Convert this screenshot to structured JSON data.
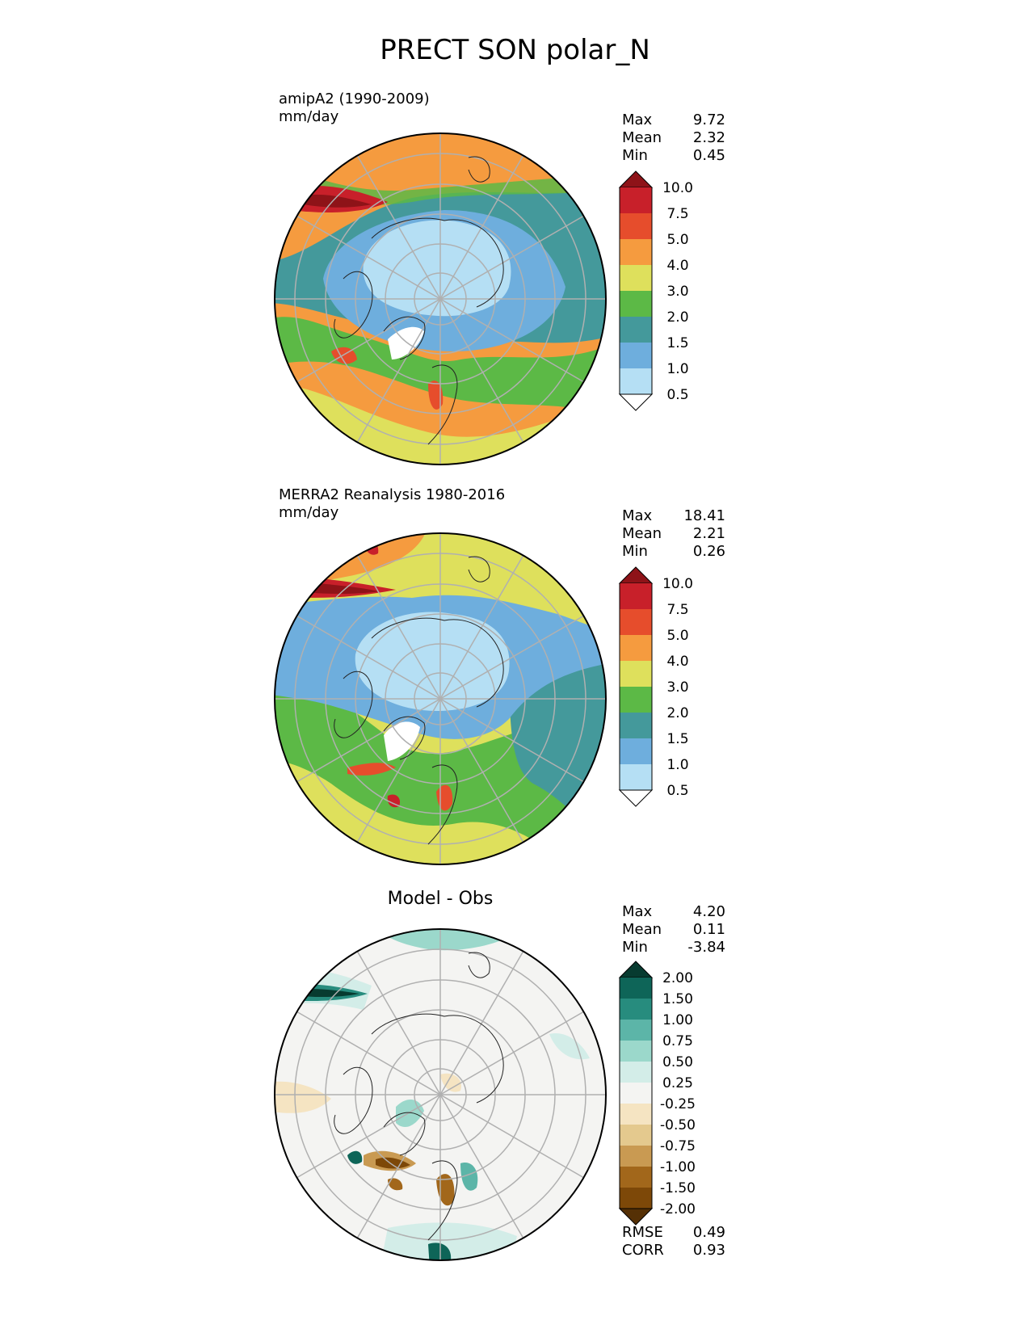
{
  "page": {
    "title": "PRECT SON polar_N"
  },
  "panels": [
    {
      "id": "model",
      "title_line1": "amipA2 (1990-2009)",
      "title_line2": "mm/day",
      "stats": [
        {
          "label": "Max",
          "value": "9.72"
        },
        {
          "label": "Mean",
          "value": "2.32"
        },
        {
          "label": "Min",
          "value": "0.45"
        }
      ],
      "colorbar": {
        "levels": [
          "10.0",
          "7.5",
          "5.0",
          "4.0",
          "3.0",
          "2.0",
          "1.5",
          "1.0",
          "0.5"
        ],
        "colors": [
          "#8e1318",
          "#c8202a",
          "#e64d2c",
          "#f59b3f",
          "#dee05c",
          "#5cb946",
          "#44999b",
          "#6eaedd",
          "#b5dff4",
          "#ffffff"
        ]
      }
    },
    {
      "id": "obs",
      "title_line1": "MERRA2 Reanalysis 1980-2016",
      "title_line2": "mm/day",
      "stats": [
        {
          "label": "Max",
          "value": "18.41"
        },
        {
          "label": "Mean",
          "value": "2.21"
        },
        {
          "label": "Min",
          "value": "0.26"
        }
      ],
      "colorbar": {
        "levels": [
          "10.0",
          "7.5",
          "5.0",
          "4.0",
          "3.0",
          "2.0",
          "1.5",
          "1.0",
          "0.5"
        ],
        "colors": [
          "#8e1318",
          "#c8202a",
          "#e64d2c",
          "#f59b3f",
          "#dee05c",
          "#5cb946",
          "#44999b",
          "#6eaedd",
          "#b5dff4",
          "#ffffff"
        ]
      }
    },
    {
      "id": "diff",
      "title": "Model - Obs",
      "stats": [
        {
          "label": "Max",
          "value": "4.20"
        },
        {
          "label": "Mean",
          "value": "0.11"
        },
        {
          "label": "Min",
          "value": "-3.84"
        }
      ],
      "metrics": [
        {
          "label": "RMSE",
          "value": "0.49"
        },
        {
          "label": "CORR",
          "value": "0.93"
        }
      ],
      "colorbar": {
        "levels": [
          "2.00",
          "1.50",
          "1.00",
          "0.75",
          "0.50",
          "0.25",
          "-0.25",
          "-0.50",
          "-0.75",
          "-1.00",
          "-1.50",
          "-2.00"
        ],
        "colors": [
          "#073b30",
          "#0e6558",
          "#278c7e",
          "#5cb5a8",
          "#9bd8cb",
          "#d3ede8",
          "#f4f4f2",
          "#f5e4c2",
          "#e4c98e",
          "#c99a52",
          "#a2671b",
          "#7d4808",
          "#553005"
        ]
      }
    }
  ]
}
